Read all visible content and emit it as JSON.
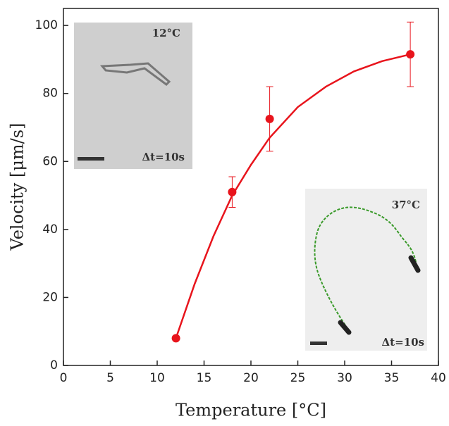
{
  "chart_data": {
    "type": "scatter",
    "x_label": "Temperature [°C]",
    "y_label": "Velocity [μm/s]",
    "xlim": [
      0,
      40
    ],
    "xticks": [
      0,
      5,
      10,
      15,
      20,
      25,
      30,
      35,
      40
    ],
    "ylim": [
      0,
      105
    ],
    "yticks": [
      0,
      20,
      40,
      60,
      80,
      100
    ],
    "series": [
      {
        "type": "line",
        "color": "#e8141c",
        "x": [
          12,
          14,
          16,
          18,
          20,
          22,
          25,
          28,
          31,
          34,
          37
        ],
        "values": [
          8,
          24,
          38,
          50,
          59,
          67,
          76,
          82,
          86.5,
          89.5,
          91.5
        ]
      },
      {
        "type": "scatter",
        "color": "#e8141c",
        "x": [
          12,
          18,
          22,
          37
        ],
        "values": [
          8,
          51,
          72.5,
          91.5
        ],
        "errors": [
          null,
          4.5,
          9.5,
          9.5
        ]
      }
    ],
    "annotations": [
      "12°C",
      "Δt=10s",
      "37°C",
      "Δt=10s"
    ]
  }
}
